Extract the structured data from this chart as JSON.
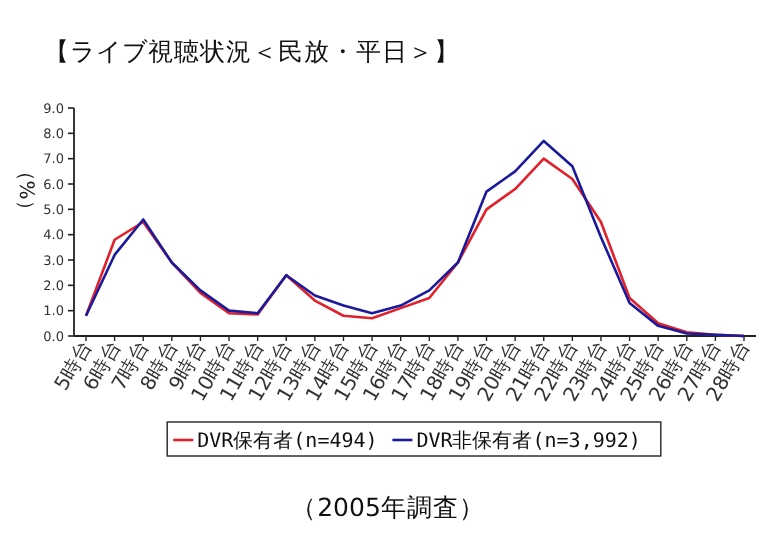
{
  "chart_data": {
    "type": "line",
    "title": "【ライブ視聴状況＜民放・平日＞】",
    "ylabel": "（%）",
    "categories": [
      "5時台",
      "6時台",
      "7時台",
      "8時台",
      "9時台",
      "10時台",
      "11時台",
      "12時台",
      "13時台",
      "14時台",
      "15時台",
      "16時台",
      "17時台",
      "18時台",
      "19時台",
      "20時台",
      "21時台",
      "22時台",
      "23時台",
      "24時台",
      "25時台",
      "26時台",
      "27時台",
      "28時台"
    ],
    "ylim": [
      0,
      9
    ],
    "yticks": [
      {
        "value": 0,
        "label": "0.0"
      },
      {
        "value": 1,
        "label": "1.0"
      },
      {
        "value": 2,
        "label": "2.0"
      },
      {
        "value": 3,
        "label": "3.0"
      },
      {
        "value": 4,
        "label": "4.0"
      },
      {
        "value": 5,
        "label": "5.0"
      },
      {
        "value": 6,
        "label": "6.0"
      },
      {
        "value": 7,
        "label": "7.0"
      },
      {
        "value": 8,
        "label": "8.0"
      },
      {
        "value": 9,
        "label": "9.0"
      }
    ],
    "legend": "bottom",
    "marker": "none",
    "series": [
      {
        "name": "DVR保有者(n=494)",
        "color": "#e0202a",
        "values": [
          0.8,
          3.8,
          4.5,
          2.9,
          1.7,
          0.9,
          0.85,
          2.4,
          1.4,
          0.8,
          0.7,
          1.1,
          1.5,
          2.9,
          5.0,
          5.8,
          7.0,
          6.2,
          4.5,
          1.5,
          0.5,
          0.15,
          0.05,
          0.0
        ]
      },
      {
        "name": "DVR非保有者(n=3,992)",
        "color": "#1a1a9a",
        "values": [
          0.8,
          3.2,
          4.6,
          2.9,
          1.8,
          1.0,
          0.9,
          2.4,
          1.6,
          1.2,
          0.9,
          1.2,
          1.8,
          2.9,
          5.7,
          6.5,
          7.7,
          6.7,
          3.9,
          1.3,
          0.4,
          0.1,
          0.05,
          0.0
        ]
      }
    ],
    "annotations": [
      "（2005年調査）"
    ]
  }
}
